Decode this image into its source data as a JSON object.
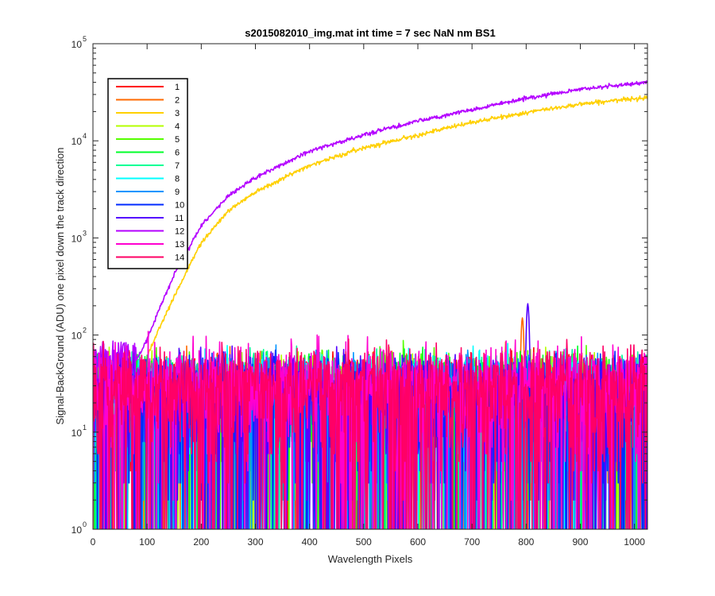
{
  "chart_data": {
    "type": "line",
    "title": "s2015082010_img.mat int time = 7 sec  NaN nm BS1",
    "xlabel": "Wavelength Pixels",
    "ylabel": "Signal-BackGround (ADU) one pixel down the track direction",
    "xlim": [
      0,
      1024
    ],
    "ylim": [
      1,
      100000
    ],
    "yscale": "log",
    "grid": false,
    "legend_position": "top-left",
    "x_ticks": [
      "0",
      "100",
      "200",
      "300",
      "400",
      "500",
      "600",
      "700",
      "800",
      "900",
      "1000"
    ],
    "y_ticks": [
      "10",
      "10",
      "10",
      "10",
      "10",
      "10"
    ],
    "y_tick_exponents": [
      "0",
      "1",
      "2",
      "3",
      "4",
      "5"
    ],
    "series": [
      {
        "name": "1",
        "color": "#ff0000",
        "kind": "noise",
        "noise_level": 25
      },
      {
        "name": "2",
        "color": "#ff6a00",
        "kind": "noise",
        "noise_level": 25,
        "peak": {
          "x": 793,
          "y": 150
        }
      },
      {
        "name": "3",
        "color": "#ffd000",
        "kind": "smooth",
        "points": [
          [
            90,
            40
          ],
          [
            100,
            60
          ],
          [
            120,
            110
          ],
          [
            150,
            250
          ],
          [
            200,
            900
          ],
          [
            250,
            1900
          ],
          [
            300,
            3000
          ],
          [
            400,
            5600
          ],
          [
            500,
            8500
          ],
          [
            600,
            11500
          ],
          [
            700,
            15500
          ],
          [
            800,
            19500
          ],
          [
            900,
            24000
          ],
          [
            1024,
            28000
          ]
        ]
      },
      {
        "name": "4",
        "color": "#b4ff00",
        "kind": "noise",
        "noise_level": 25
      },
      {
        "name": "5",
        "color": "#55ff00",
        "kind": "noise",
        "noise_level": 25
      },
      {
        "name": "6",
        "color": "#00ff2a",
        "kind": "noise",
        "noise_level": 25
      },
      {
        "name": "7",
        "color": "#00ff95",
        "kind": "noise",
        "noise_level": 25
      },
      {
        "name": "8",
        "color": "#00ffff",
        "kind": "noise",
        "noise_level": 25
      },
      {
        "name": "9",
        "color": "#0095ff",
        "kind": "noise",
        "noise_level": 25
      },
      {
        "name": "10",
        "color": "#002aff",
        "kind": "noise",
        "noise_level": 25
      },
      {
        "name": "11",
        "color": "#5500ff",
        "kind": "noise",
        "noise_level": 25,
        "peak": {
          "x": 803,
          "y": 210
        }
      },
      {
        "name": "12",
        "color": "#b400ff",
        "kind": "smooth",
        "points": [
          [
            80,
            55
          ],
          [
            100,
            90
          ],
          [
            120,
            170
          ],
          [
            150,
            420
          ],
          [
            200,
            1350
          ],
          [
            250,
            2700
          ],
          [
            300,
            4200
          ],
          [
            400,
            7800
          ],
          [
            500,
            11500
          ],
          [
            600,
            16000
          ],
          [
            700,
            21000
          ],
          [
            800,
            27500
          ],
          [
            900,
            34000
          ],
          [
            1024,
            40000
          ]
        ]
      },
      {
        "name": "13",
        "color": "#ff00d0",
        "kind": "noise",
        "noise_level": 30
      },
      {
        "name": "14",
        "color": "#ff0066",
        "kind": "noise",
        "noise_level": 28
      }
    ]
  }
}
